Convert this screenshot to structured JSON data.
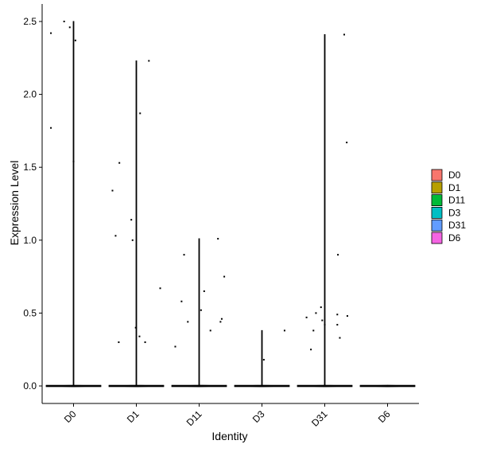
{
  "chart_data": {
    "type": "violin",
    "title": "",
    "xlabel": "Identity",
    "ylabel": "Expression Level",
    "ylim": [
      -0.12,
      2.62
    ],
    "yticks": [
      0.0,
      0.5,
      1.0,
      1.5,
      2.0,
      2.5
    ],
    "ytick_labels": [
      "0.0",
      "0.5",
      "1.0",
      "1.5",
      "2.0",
      "2.5"
    ],
    "categories": [
      "D0",
      "D1",
      "D11",
      "D3",
      "D31",
      "D6"
    ],
    "colors": [
      "#F8766D",
      "#B79F00",
      "#00BA38",
      "#00BFC4",
      "#619CFF",
      "#F564E3"
    ],
    "legend": {
      "position": "right",
      "entries": [
        "D0",
        "D1",
        "D11",
        "D3",
        "D31",
        "D6"
      ]
    },
    "grid": false,
    "series": [
      {
        "name": "D0",
        "max": 2.5,
        "points": [
          [
            -0.36,
            2.42
          ],
          [
            -0.15,
            2.5
          ],
          [
            -0.06,
            2.46
          ],
          [
            0.03,
            2.37
          ],
          [
            -0.36,
            1.77
          ],
          [
            0.0,
            1.54
          ]
        ]
      },
      {
        "name": "D1",
        "max": 2.23,
        "points": [
          [
            0.2,
            2.23
          ],
          [
            0.06,
            1.87
          ],
          [
            -0.27,
            1.53
          ],
          [
            -0.38,
            1.34
          ],
          [
            -0.08,
            1.14
          ],
          [
            -0.33,
            1.03
          ],
          [
            -0.06,
            1.0
          ],
          [
            0.38,
            0.67
          ],
          [
            -0.01,
            0.4
          ],
          [
            0.05,
            0.34
          ],
          [
            -0.28,
            0.3
          ],
          [
            0.14,
            0.3
          ]
        ]
      },
      {
        "name": "D11",
        "max": 1.01,
        "points": [
          [
            0.3,
            1.01
          ],
          [
            -0.24,
            0.9
          ],
          [
            0.4,
            0.75
          ],
          [
            0.08,
            0.65
          ],
          [
            -0.28,
            0.58
          ],
          [
            0.03,
            0.52
          ],
          [
            0.36,
            0.46
          ],
          [
            0.34,
            0.44
          ],
          [
            -0.18,
            0.44
          ],
          [
            0.18,
            0.38
          ],
          [
            -0.38,
            0.27
          ]
        ]
      },
      {
        "name": "D3",
        "max": 0.38,
        "points": [
          [
            0.36,
            0.38
          ],
          [
            0.03,
            0.18
          ]
        ]
      },
      {
        "name": "D31",
        "max": 2.41,
        "points": [
          [
            0.31,
            2.41
          ],
          [
            0.35,
            1.67
          ],
          [
            0.21,
            0.9
          ],
          [
            -0.06,
            0.54
          ],
          [
            -0.14,
            0.5
          ],
          [
            0.2,
            0.49
          ],
          [
            0.36,
            0.48
          ],
          [
            -0.29,
            0.47
          ],
          [
            -0.04,
            0.45
          ],
          [
            0.0,
            0.42
          ],
          [
            0.2,
            0.42
          ],
          [
            -0.18,
            0.38
          ],
          [
            0.24,
            0.33
          ],
          [
            -0.22,
            0.25
          ]
        ]
      },
      {
        "name": "D6",
        "max": 0.0,
        "points": []
      }
    ]
  }
}
